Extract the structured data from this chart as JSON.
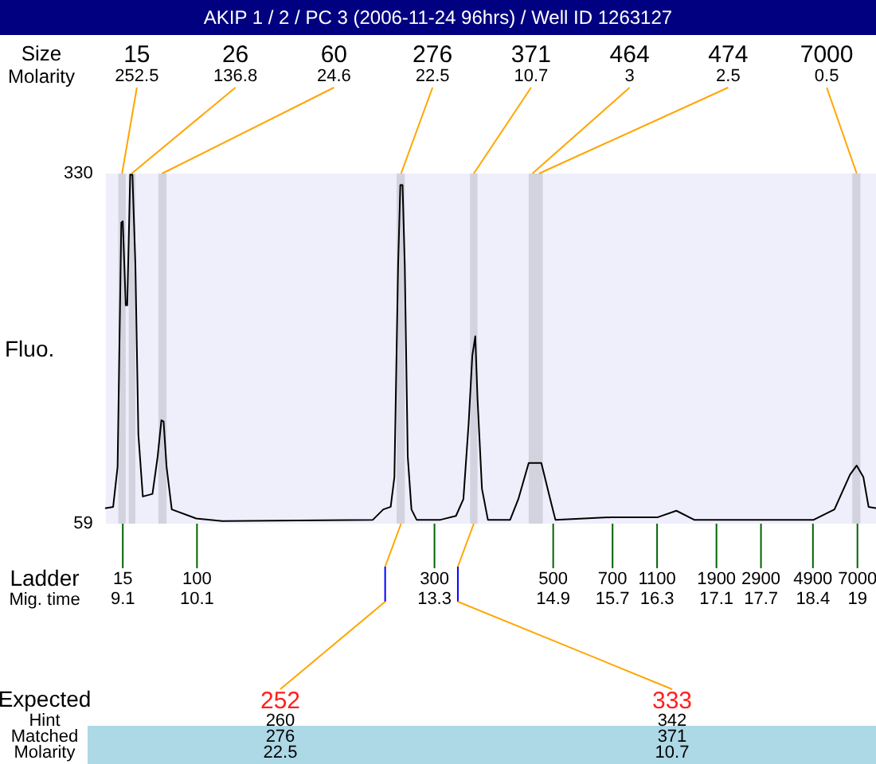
{
  "chart_data": {
    "type": "line",
    "title": "AKIP 1 / 2 / PC 3 (2006-11-24 96hrs) / Well ID 1263127",
    "xlabel": "Mig. time",
    "ylabel": "Fluo.",
    "xlim": [
      8.87,
      19.25
    ],
    "ylim": [
      59,
      330
    ],
    "yticks": [
      59,
      330
    ],
    "xticks": [
      9.1,
      10.1,
      13.3,
      14.9,
      15.7,
      16.3,
      17.1,
      17.7,
      18.4,
      19
    ],
    "x": [
      8.87,
      8.97,
      9.03,
      9.08,
      9.1,
      9.14,
      9.16,
      9.2,
      9.23,
      9.27,
      9.31,
      9.37,
      9.5,
      9.57,
      9.62,
      9.65,
      9.69,
      9.76,
      10.09,
      10.44,
      12.47,
      12.61,
      12.71,
      12.76,
      12.81,
      12.84,
      12.87,
      12.9,
      12.94,
      12.99,
      13.06,
      13.38,
      13.59,
      13.69,
      13.76,
      13.81,
      13.85,
      13.88,
      13.94,
      14.02,
      14.32,
      14.43,
      14.57,
      14.74,
      14.86,
      14.93,
      15.68,
      16.31,
      16.56,
      16.8,
      18.41,
      18.69,
      18.9,
      18.99,
      19.08,
      19.15,
      19.25
    ],
    "series": [
      {
        "color": "#000000",
        "values": [
          71,
          72,
          103,
          292,
          293,
          228,
          228,
          329,
          329,
          259,
          128,
          80,
          82,
          111,
          139,
          138,
          103,
          70,
          63,
          61,
          62,
          70,
          72,
          95,
          259,
          321,
          321,
          259,
          111,
          70,
          62,
          62,
          65,
          78,
          136,
          189,
          204,
          156,
          86,
          62,
          62,
          78,
          106,
          106,
          78,
          62,
          64,
          64,
          69,
          62,
          62,
          70,
          97,
          104,
          95,
          72,
          71
        ]
      }
    ],
    "bands": [
      {
        "axis": "x",
        "from": 9.04,
        "to": 9.14,
        "color": "#d3d3e0"
      },
      {
        "axis": "x",
        "from": 9.18,
        "to": 9.27,
        "color": "#d3d3e0"
      },
      {
        "axis": "x",
        "from": 9.58,
        "to": 9.69,
        "color": "#d3d3e0"
      },
      {
        "axis": "x",
        "from": 12.79,
        "to": 12.9,
        "color": "#d3d3e0"
      },
      {
        "axis": "x",
        "from": 13.78,
        "to": 13.88,
        "color": "#d3d3e0"
      },
      {
        "axis": "x",
        "from": 14.57,
        "to": 14.68,
        "color": "#d3d3e0"
      },
      {
        "axis": "x",
        "from": 14.66,
        "to": 14.76,
        "color": "#d3d3e0"
      },
      {
        "axis": "x",
        "from": 18.93,
        "to": 19.04,
        "color": "#d3d3e0"
      }
    ],
    "annotations": [
      "Size",
      "Molarity",
      {
        "text": "15",
        "x": 9.09,
        "y": 330
      },
      "252.5",
      {
        "text": "26",
        "x": 9.22,
        "y": 330
      },
      "136.8",
      {
        "text": "60",
        "x": 9.63,
        "y": 330
      },
      "24.6",
      {
        "text": "276",
        "x": 12.85,
        "y": 330
      },
      "22.5",
      {
        "text": "371",
        "x": 13.83,
        "y": 330
      },
      "10.7",
      {
        "text": "464",
        "x": 14.62,
        "y": 330
      },
      "3",
      {
        "text": "474",
        "x": 14.71,
        "y": 330
      },
      "2.5",
      {
        "text": "7000",
        "x": 18.99,
        "y": 330
      },
      "0.5",
      "Expected",
      "Hint",
      "Matched",
      "Molarity",
      "252",
      "260",
      "276",
      "22.5",
      "333",
      "342",
      "371",
      "10.7",
      "Ladder",
      {
        "text": "15",
        "x": 9.1,
        "y": 59
      },
      {
        "text": "100",
        "x": 10.1,
        "y": 59
      },
      {
        "text": "300",
        "x": 13.3,
        "y": 59
      },
      {
        "text": "500",
        "x": 14.9,
        "y": 59
      },
      {
        "text": "700",
        "x": 15.7,
        "y": 59
      },
      {
        "text": "1100",
        "x": 16.3,
        "y": 59
      },
      {
        "text": "1900",
        "x": 17.1,
        "y": 59
      },
      {
        "text": "2900",
        "x": 17.7,
        "y": 59
      },
      {
        "text": "4900",
        "x": 18.4,
        "y": 59
      },
      {
        "text": "7000",
        "x": 19,
        "y": 59
      }
    ],
    "marker": "none",
    "line_style": "solid"
  }
}
